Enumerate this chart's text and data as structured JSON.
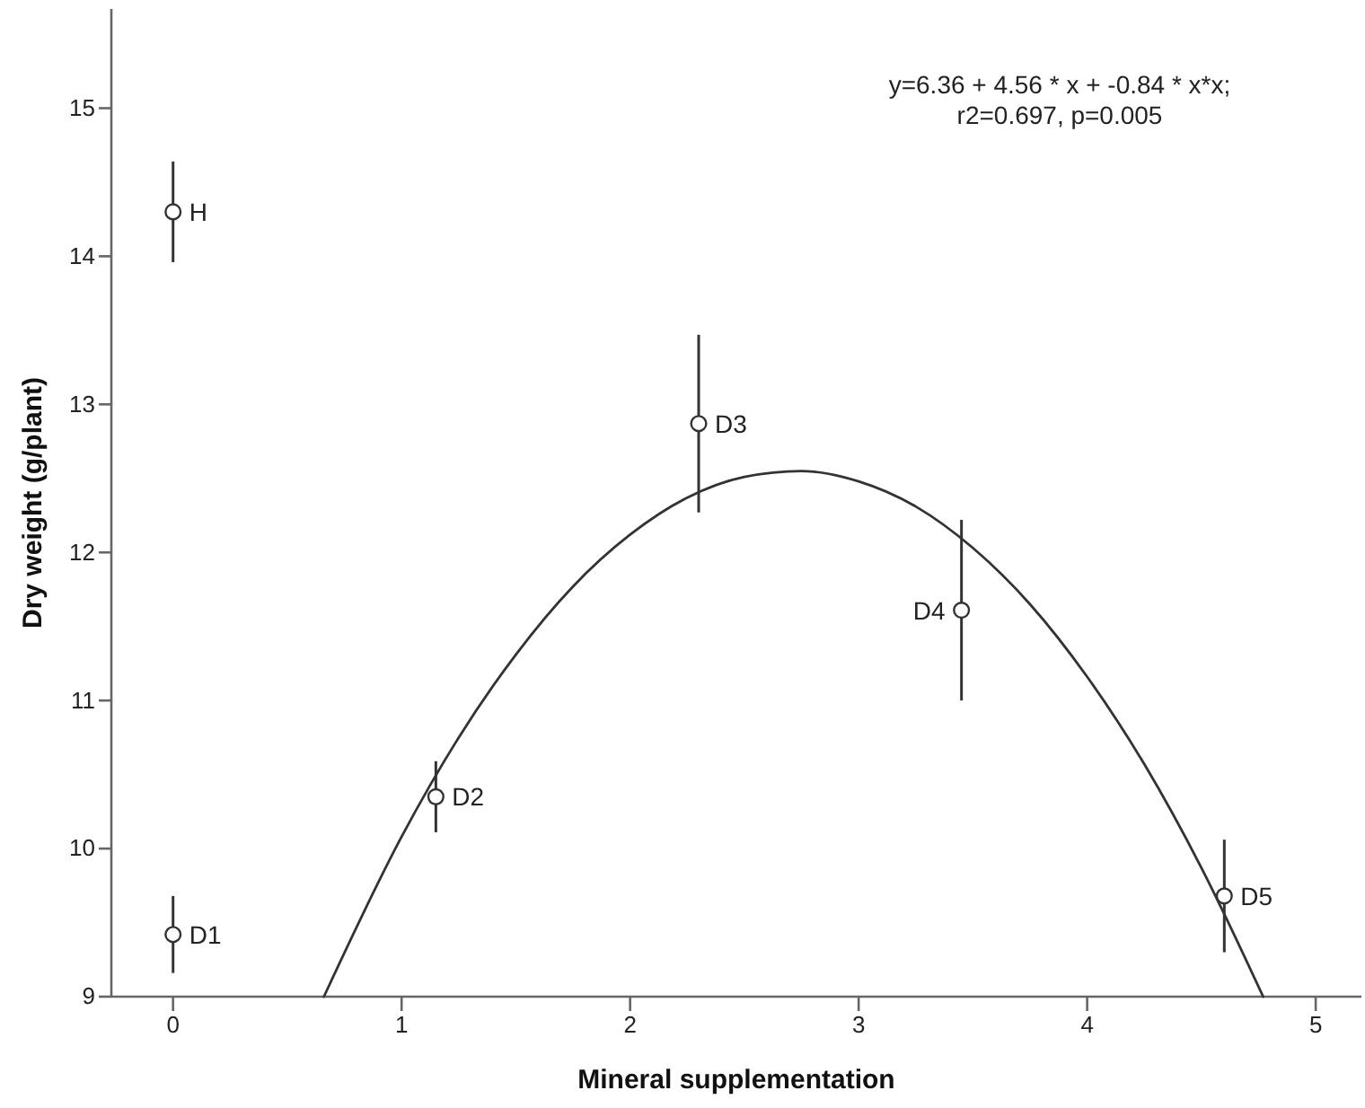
{
  "chart_data": {
    "type": "scatter",
    "xlabel": "Mineral supplementation",
    "ylabel": "Dry weight (g/plant)",
    "xlim": [
      -0.27,
      5.2
    ],
    "xticks": [
      0,
      1,
      2,
      3,
      4,
      5
    ],
    "ylim": [
      9,
      15.67
    ],
    "yticks": [
      9,
      10,
      11,
      12,
      13,
      14,
      15
    ],
    "marker": "circle",
    "series": [
      {
        "color": "#333333",
        "x": [
          0,
          0,
          1.15,
          2.3,
          3.45,
          4.6
        ],
        "values": [
          14.3,
          9.42,
          10.35,
          12.87,
          11.61,
          9.68
        ],
        "errors": [
          0.34,
          0.26,
          0.24,
          0.6,
          0.61,
          0.38
        ]
      },
      {
        "type": "line",
        "color": "#333333",
        "marker": "none",
        "x": [
          0.66,
          1.0,
          1.25,
          1.5,
          1.75,
          2.0,
          2.25,
          2.5,
          2.75,
          3.0,
          3.25,
          3.5,
          3.75,
          4.0,
          4.25,
          4.5,
          4.77
        ],
        "values": [
          9.0,
          10.08,
          10.75,
          11.31,
          11.77,
          12.12,
          12.37,
          12.51,
          12.55,
          12.48,
          12.31,
          12.03,
          11.65,
          11.16,
          10.57,
          9.87,
          9.0
        ]
      }
    ],
    "annotations": [
      {
        "text": "H",
        "x": 0,
        "y": 14.3
      },
      {
        "text": "D1",
        "x": 0,
        "y": 9.42
      },
      {
        "text": "D2",
        "x": 1.15,
        "y": 10.35
      },
      {
        "text": "D3",
        "x": 2.3,
        "y": 12.87
      },
      {
        "text": "D4",
        "x": 3.45,
        "y": 11.61
      },
      {
        "text": "D5",
        "x": 4.6,
        "y": 9.68
      },
      "y=6.36 + 4.56 * x + -0.84 * x*x;\nr2=0.697, p=0.005"
    ]
  }
}
